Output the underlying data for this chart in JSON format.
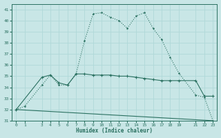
{
  "xlabel": "Humidex (Indice chaleur)",
  "xlim": [
    -0.5,
    23.5
  ],
  "ylim": [
    31,
    41.5
  ],
  "yticks": [
    31,
    32,
    33,
    34,
    35,
    36,
    37,
    38,
    39,
    40,
    41
  ],
  "xtick_positions": [
    0,
    1,
    3,
    4,
    5,
    6,
    7,
    8,
    9,
    10,
    11,
    12,
    13,
    14,
    15,
    16,
    17,
    18,
    19,
    21,
    22,
    23
  ],
  "xtick_labels": [
    "0",
    "1",
    "3",
    "4",
    "5",
    "6",
    "7",
    "8",
    "9",
    "10",
    "11",
    "12",
    "13",
    "14",
    "15",
    "16",
    "17",
    "18",
    "19",
    "21",
    "22",
    "23"
  ],
  "bg_color": "#c8e6e6",
  "grid_color": "#b0d8d8",
  "line_color": "#2a7060",
  "line1_x": [
    0,
    1,
    3,
    4,
    5,
    6,
    7,
    8,
    9,
    10,
    11,
    12,
    13,
    14,
    15,
    16,
    17,
    18,
    19,
    21,
    22,
    23
  ],
  "line1_y": [
    32,
    32.3,
    34.2,
    35.1,
    34.2,
    34.2,
    35.2,
    38.2,
    40.6,
    40.7,
    40.3,
    40.0,
    39.3,
    40.4,
    40.7,
    39.3,
    38.3,
    36.7,
    35.3,
    33.3,
    33.1,
    31.0
  ],
  "line2_x": [
    0,
    3,
    4,
    5,
    6,
    7,
    8,
    9,
    10,
    11,
    12,
    13,
    14,
    15,
    16,
    17,
    18,
    19,
    21,
    22,
    23
  ],
  "line2_y": [
    32,
    34.9,
    35.1,
    34.4,
    34.2,
    35.2,
    35.2,
    35.1,
    35.1,
    35.1,
    35.0,
    35.0,
    34.9,
    34.8,
    34.7,
    34.6,
    34.6,
    34.6,
    34.6,
    33.2,
    33.2
  ],
  "line3_x": [
    0,
    23
  ],
  "line3_y": [
    32,
    31.0
  ]
}
